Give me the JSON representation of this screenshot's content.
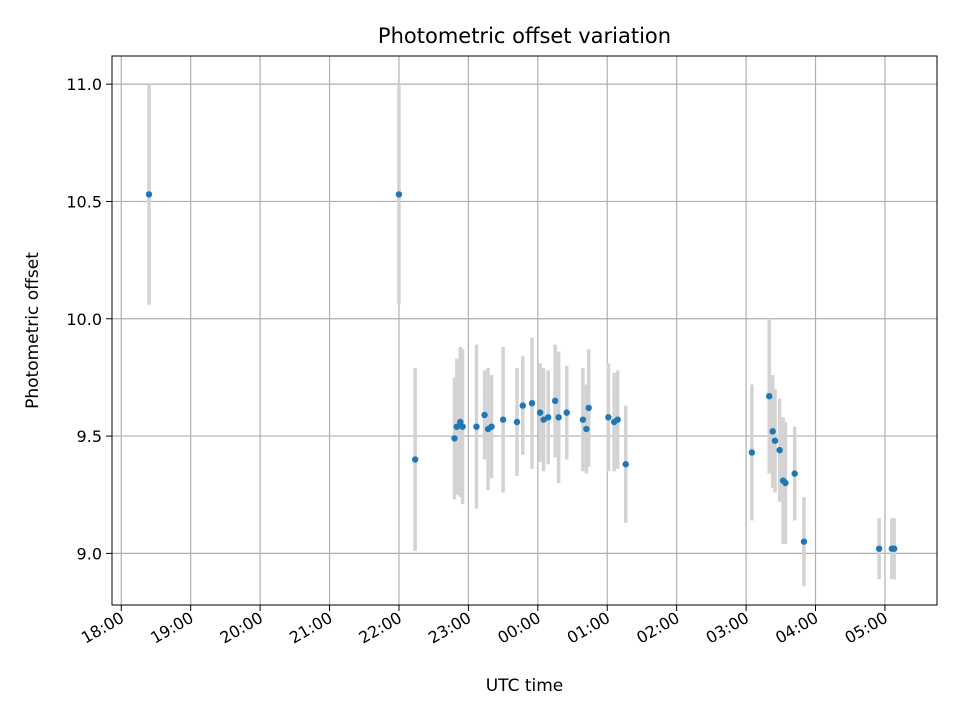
{
  "chart_data": {
    "type": "scatter",
    "title": "Photometric offset variation",
    "xlabel": "UTC time",
    "ylabel": "Photometric offset",
    "x_is_time": true,
    "xlim": [
      "17:52",
      "05:45"
    ],
    "ylim": [
      8.78,
      11.12
    ],
    "xticks": [
      "18:00",
      "19:00",
      "20:00",
      "21:00",
      "22:00",
      "23:00",
      "00:00",
      "01:00",
      "02:00",
      "03:00",
      "04:00",
      "05:00"
    ],
    "yticks": [
      9.0,
      9.5,
      10.0,
      10.5,
      11.0
    ],
    "ytick_labels": [
      "9.0",
      "9.5",
      "10.0",
      "10.5",
      "11.0"
    ],
    "grid": true,
    "colors": {
      "marker": "#1f77b4",
      "errorbar": "#d3d3d3",
      "grid": "#b0b0b0"
    },
    "points": [
      {
        "x": "18:24",
        "y": 10.53,
        "err": 0.47
      },
      {
        "x": "22:00",
        "y": 10.53,
        "err": 0.47
      },
      {
        "x": "22:14",
        "y": 9.4,
        "err": 0.39
      },
      {
        "x": "22:48",
        "y": 9.49,
        "err": 0.26
      },
      {
        "x": "22:50",
        "y": 9.54,
        "err": 0.29
      },
      {
        "x": "22:53",
        "y": 9.56,
        "err": 0.32
      },
      {
        "x": "22:55",
        "y": 9.54,
        "err": 0.33
      },
      {
        "x": "23:07",
        "y": 9.54,
        "err": 0.35
      },
      {
        "x": "23:14",
        "y": 9.59,
        "err": 0.19
      },
      {
        "x": "23:17",
        "y": 9.53,
        "err": 0.26
      },
      {
        "x": "23:20",
        "y": 9.54,
        "err": 0.22
      },
      {
        "x": "23:30",
        "y": 9.57,
        "err": 0.31
      },
      {
        "x": "23:42",
        "y": 9.56,
        "err": 0.23
      },
      {
        "x": "23:47",
        "y": 9.63,
        "err": 0.21
      },
      {
        "x": "23:55",
        "y": 9.64,
        "err": 0.28
      },
      {
        "x": "00:02",
        "y": 9.6,
        "err": 0.21
      },
      {
        "x": "00:05",
        "y": 9.57,
        "err": 0.22
      },
      {
        "x": "00:09",
        "y": 9.58,
        "err": 0.2
      },
      {
        "x": "00:15",
        "y": 9.65,
        "err": 0.24
      },
      {
        "x": "00:18",
        "y": 9.58,
        "err": 0.28
      },
      {
        "x": "00:25",
        "y": 9.6,
        "err": 0.2
      },
      {
        "x": "00:39",
        "y": 9.57,
        "err": 0.22
      },
      {
        "x": "00:42",
        "y": 9.53,
        "err": 0.19
      },
      {
        "x": "00:44",
        "y": 9.62,
        "err": 0.25
      },
      {
        "x": "01:01",
        "y": 9.58,
        "err": 0.23
      },
      {
        "x": "01:06",
        "y": 9.56,
        "err": 0.21
      },
      {
        "x": "01:09",
        "y": 9.57,
        "err": 0.21
      },
      {
        "x": "01:16",
        "y": 9.38,
        "err": 0.25
      },
      {
        "x": "03:05",
        "y": 9.43,
        "err": 0.29
      },
      {
        "x": "03:20",
        "y": 9.67,
        "err": 0.33
      },
      {
        "x": "03:23",
        "y": 9.52,
        "err": 0.24
      },
      {
        "x": "03:25",
        "y": 9.48,
        "err": 0.22
      },
      {
        "x": "03:29",
        "y": 9.44,
        "err": 0.22
      },
      {
        "x": "03:32",
        "y": 9.31,
        "err": 0.27
      },
      {
        "x": "03:34",
        "y": 9.3,
        "err": 0.26
      },
      {
        "x": "03:42",
        "y": 9.34,
        "err": 0.2
      },
      {
        "x": "03:50",
        "y": 9.05,
        "err": 0.19
      },
      {
        "x": "04:55",
        "y": 9.02,
        "err": 0.13
      },
      {
        "x": "05:06",
        "y": 9.02,
        "err": 0.13
      },
      {
        "x": "05:08",
        "y": 9.02,
        "err": 0.13
      }
    ]
  }
}
